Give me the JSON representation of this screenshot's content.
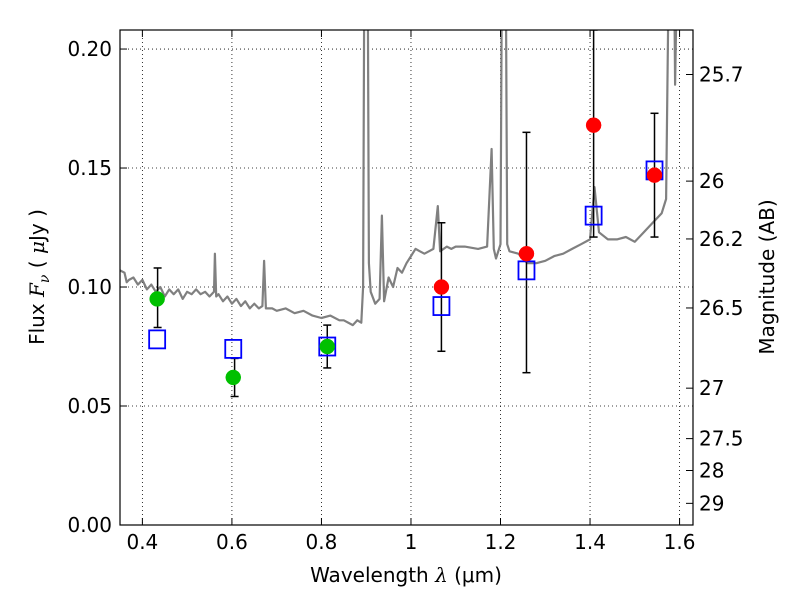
{
  "chart_data": {
    "type": "scatter",
    "title": "",
    "xlabel": "Wavelength  λ (μm)",
    "xlabel_parts": {
      "text": "Wavelength",
      "symbol": "λ",
      "unit": "(μm)"
    },
    "ylabel": "Flux  Fν  ( μJy )",
    "ylabel_parts": {
      "text": "Flux",
      "symbol": "F",
      "subscript": "ν",
      "unit_open": "(",
      "unit_mu": "μ",
      "unit_jy": "Jy )"
    },
    "y2label": "Magnitude (AB)",
    "xlim": [
      0.35,
      1.63
    ],
    "ylim": [
      0.0,
      0.208
    ],
    "grid": true,
    "x_ticks": [
      {
        "value": 0.4,
        "label": "0.4"
      },
      {
        "value": 0.6,
        "label": "0.6"
      },
      {
        "value": 0.8,
        "label": "0.8"
      },
      {
        "value": 1.0,
        "label": "1"
      },
      {
        "value": 1.2,
        "label": "1.2"
      },
      {
        "value": 1.4,
        "label": "1.4"
      },
      {
        "value": 1.6,
        "label": "1.6"
      }
    ],
    "y_ticks": [
      {
        "value": 0.0,
        "label": "0.00"
      },
      {
        "value": 0.05,
        "label": "0.05"
      },
      {
        "value": 0.1,
        "label": "0.10"
      },
      {
        "value": 0.15,
        "label": "0.15"
      },
      {
        "value": 0.2,
        "label": "0.20"
      }
    ],
    "y2_ticks": [
      {
        "flux": 0.1893,
        "label": "25.7"
      },
      {
        "flux": 0.1445,
        "label": "26"
      },
      {
        "flux": 0.1202,
        "label": "26.2"
      },
      {
        "flux": 0.0912,
        "label": "26.5"
      },
      {
        "flux": 0.0575,
        "label": "27"
      },
      {
        "flux": 0.0363,
        "label": "27.5"
      },
      {
        "flux": 0.0229,
        "label": "28"
      },
      {
        "flux": 0.0091,
        "label": "29"
      }
    ],
    "series": [
      {
        "name": "model-spectrum",
        "kind": "line",
        "color": "#808080",
        "points": [
          [
            0.35,
            0.107
          ],
          [
            0.36,
            0.106
          ],
          [
            0.365,
            0.102
          ],
          [
            0.37,
            0.103
          ],
          [
            0.38,
            0.104
          ],
          [
            0.39,
            0.101
          ],
          [
            0.4,
            0.103
          ],
          [
            0.41,
            0.099
          ],
          [
            0.42,
            0.101
          ],
          [
            0.43,
            0.098
          ],
          [
            0.44,
            0.1
          ],
          [
            0.45,
            0.096
          ],
          [
            0.46,
            0.099
          ],
          [
            0.47,
            0.097
          ],
          [
            0.48,
            0.099
          ],
          [
            0.49,
            0.095
          ],
          [
            0.5,
            0.098
          ],
          [
            0.51,
            0.097
          ],
          [
            0.52,
            0.099
          ],
          [
            0.53,
            0.097
          ],
          [
            0.54,
            0.098
          ],
          [
            0.55,
            0.096
          ],
          [
            0.56,
            0.098
          ],
          [
            0.562,
            0.114
          ],
          [
            0.565,
            0.096
          ],
          [
            0.57,
            0.097
          ],
          [
            0.58,
            0.094
          ],
          [
            0.59,
            0.096
          ],
          [
            0.6,
            0.093
          ],
          [
            0.61,
            0.095
          ],
          [
            0.62,
            0.092
          ],
          [
            0.63,
            0.094
          ],
          [
            0.64,
            0.091
          ],
          [
            0.65,
            0.093
          ],
          [
            0.66,
            0.091
          ],
          [
            0.668,
            0.092
          ],
          [
            0.672,
            0.111
          ],
          [
            0.676,
            0.091
          ],
          [
            0.69,
            0.091
          ],
          [
            0.7,
            0.09
          ],
          [
            0.72,
            0.091
          ],
          [
            0.74,
            0.089
          ],
          [
            0.76,
            0.09
          ],
          [
            0.78,
            0.088
          ],
          [
            0.8,
            0.087
          ],
          [
            0.82,
            0.088
          ],
          [
            0.84,
            0.086
          ],
          [
            0.85,
            0.086
          ],
          [
            0.87,
            0.084
          ],
          [
            0.88,
            0.086
          ],
          [
            0.889,
            0.085
          ],
          [
            0.893,
            0.1
          ],
          [
            0.897,
            0.3
          ],
          [
            0.902,
            0.3
          ],
          [
            0.906,
            0.11
          ],
          [
            0.91,
            0.098
          ],
          [
            0.92,
            0.093
          ],
          [
            0.93,
            0.095
          ],
          [
            0.935,
            0.13
          ],
          [
            0.94,
            0.094
          ],
          [
            0.95,
            0.104
          ],
          [
            0.96,
            0.1
          ],
          [
            0.97,
            0.108
          ],
          [
            0.98,
            0.106
          ],
          [
            0.99,
            0.11
          ],
          [
            1.0,
            0.113
          ],
          [
            1.01,
            0.116
          ],
          [
            1.02,
            0.115
          ],
          [
            1.03,
            0.114
          ],
          [
            1.04,
            0.115
          ],
          [
            1.05,
            0.116
          ],
          [
            1.06,
            0.134
          ],
          [
            1.065,
            0.115
          ],
          [
            1.08,
            0.117
          ],
          [
            1.09,
            0.116
          ],
          [
            1.1,
            0.117
          ],
          [
            1.12,
            0.117
          ],
          [
            1.15,
            0.116
          ],
          [
            1.17,
            0.117
          ],
          [
            1.18,
            0.158
          ],
          [
            1.185,
            0.116
          ],
          [
            1.19,
            0.112
          ],
          [
            1.2,
            0.118
          ],
          [
            1.205,
            0.3
          ],
          [
            1.21,
            0.3
          ],
          [
            1.215,
            0.118
          ],
          [
            1.22,
            0.115
          ],
          [
            1.24,
            0.114
          ],
          [
            1.26,
            0.11
          ],
          [
            1.28,
            0.11
          ],
          [
            1.3,
            0.111
          ],
          [
            1.32,
            0.113
          ],
          [
            1.34,
            0.114
          ],
          [
            1.36,
            0.116
          ],
          [
            1.38,
            0.118
          ],
          [
            1.4,
            0.12
          ],
          [
            1.41,
            0.142
          ],
          [
            1.42,
            0.123
          ],
          [
            1.44,
            0.12
          ],
          [
            1.46,
            0.12
          ],
          [
            1.48,
            0.121
          ],
          [
            1.5,
            0.119
          ],
          [
            1.52,
            0.123
          ],
          [
            1.54,
            0.127
          ],
          [
            1.56,
            0.131
          ],
          [
            1.57,
            0.137
          ],
          [
            1.58,
            0.3
          ],
          [
            1.585,
            0.3
          ],
          [
            1.59,
            0.185
          ],
          [
            1.6,
            0.3
          ],
          [
            1.61,
            0.3
          ],
          [
            1.625,
            0.3
          ]
        ]
      },
      {
        "name": "model-photometry",
        "kind": "square",
        "color": "#0000ff",
        "points": [
          [
            0.433,
            0.078
          ],
          [
            0.603,
            0.074
          ],
          [
            0.813,
            0.075
          ],
          [
            1.068,
            0.092
          ],
          [
            1.258,
            0.107
          ],
          [
            1.408,
            0.13
          ],
          [
            1.544,
            0.149
          ]
        ]
      },
      {
        "name": "observed-green",
        "kind": "circle",
        "color": "#00c000",
        "points": [
          [
            0.433,
            0.095
          ],
          [
            0.603,
            0.062
          ],
          [
            0.813,
            0.075
          ]
        ],
        "errors": [
          [
            0.434,
            0.083,
            0.108
          ],
          [
            0.606,
            0.054,
            0.07
          ],
          [
            0.813,
            0.066,
            0.084
          ]
        ]
      },
      {
        "name": "observed-red",
        "kind": "circle",
        "color": "#ff0000",
        "points": [
          [
            1.068,
            0.1
          ],
          [
            1.258,
            0.114
          ],
          [
            1.408,
            0.168
          ],
          [
            1.544,
            0.147
          ]
        ],
        "errors": [
          [
            1.068,
            0.073,
            0.127
          ],
          [
            1.258,
            0.064,
            0.165
          ],
          [
            1.408,
            0.121,
            0.208
          ],
          [
            1.544,
            0.121,
            0.173
          ]
        ]
      }
    ]
  }
}
